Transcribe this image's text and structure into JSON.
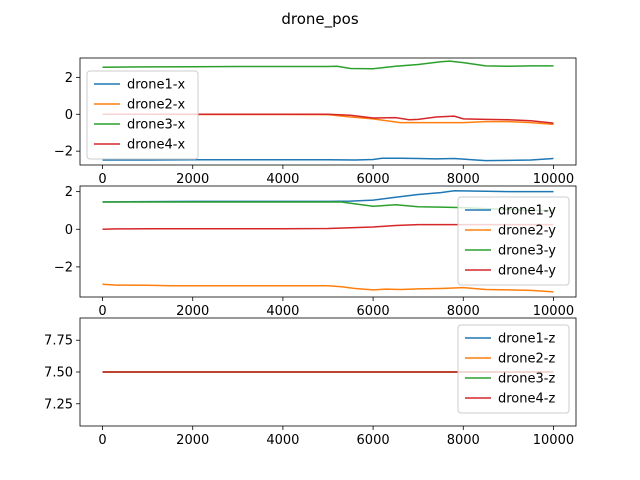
{
  "figure": {
    "title": "drone_pos"
  },
  "chart_data": [
    {
      "type": "line",
      "title": "",
      "xlabel": "",
      "ylabel": "",
      "xlim": [
        -500,
        10500
      ],
      "ylim": [
        -2.75,
        3.05
      ],
      "xticks": [
        0,
        2000,
        4000,
        6000,
        8000,
        10000
      ],
      "yticks": [
        -2,
        0,
        2
      ],
      "legend_position": "left",
      "grid": false,
      "series": [
        {
          "name": "drone1-x",
          "color": "#1f77b4",
          "x": [
            0,
            1000,
            2000,
            3000,
            4000,
            5000,
            5600,
            6000,
            6200,
            6600,
            7000,
            7400,
            7800,
            8200,
            8500,
            9000,
            9500,
            10000
          ],
          "y": [
            -2.48,
            -2.48,
            -2.47,
            -2.47,
            -2.47,
            -2.47,
            -2.48,
            -2.45,
            -2.38,
            -2.38,
            -2.4,
            -2.42,
            -2.4,
            -2.47,
            -2.51,
            -2.5,
            -2.48,
            -2.4
          ]
        },
        {
          "name": "drone2-x",
          "color": "#ff7f0e",
          "x": [
            0,
            1000,
            2000,
            3000,
            4000,
            5000,
            5500,
            6000,
            6300,
            6600,
            7000,
            7500,
            8000,
            8500,
            9000,
            9500,
            10000
          ],
          "y": [
            0.0,
            0.0,
            -0.01,
            -0.01,
            -0.01,
            -0.02,
            -0.15,
            -0.25,
            -0.35,
            -0.45,
            -0.45,
            -0.45,
            -0.45,
            -0.4,
            -0.4,
            -0.45,
            -0.55
          ]
        },
        {
          "name": "drone3-x",
          "color": "#2ca02c",
          "x": [
            0,
            1000,
            2000,
            3000,
            4000,
            5000,
            5200,
            5500,
            6000,
            6500,
            7000,
            7500,
            7700,
            8000,
            8500,
            9000,
            9500,
            10000
          ],
          "y": [
            2.55,
            2.57,
            2.58,
            2.59,
            2.59,
            2.59,
            2.6,
            2.48,
            2.47,
            2.6,
            2.7,
            2.85,
            2.88,
            2.8,
            2.62,
            2.6,
            2.62,
            2.62
          ]
        },
        {
          "name": "drone4-x",
          "color": "#d62728",
          "x": [
            0,
            1000,
            2000,
            3000,
            4000,
            5000,
            5500,
            6000,
            6500,
            6800,
            7000,
            7400,
            7800,
            8000,
            8500,
            9000,
            9500,
            10000
          ],
          "y": [
            0.0,
            0.0,
            0.0,
            0.0,
            0.0,
            0.0,
            -0.05,
            -0.2,
            -0.18,
            -0.3,
            -0.28,
            -0.15,
            -0.1,
            -0.25,
            -0.28,
            -0.3,
            -0.35,
            -0.48
          ]
        }
      ]
    },
    {
      "type": "line",
      "title": "",
      "xlabel": "",
      "ylabel": "",
      "xlim": [
        -500,
        10500
      ],
      "ylim": [
        -3.6,
        2.3
      ],
      "xticks": [
        0,
        2000,
        4000,
        6000,
        8000,
        10000
      ],
      "yticks": [
        -2,
        0,
        2
      ],
      "legend_position": "right",
      "grid": false,
      "series": [
        {
          "name": "drone1-y",
          "color": "#1f77b4",
          "x": [
            0,
            1000,
            2000,
            3000,
            4000,
            5000,
            5500,
            6000,
            6500,
            7000,
            7500,
            7800,
            8500,
            9000,
            10000
          ],
          "y": [
            1.45,
            1.47,
            1.48,
            1.48,
            1.48,
            1.48,
            1.5,
            1.55,
            1.7,
            1.85,
            1.95,
            2.05,
            2.02,
            2.0,
            2.0
          ]
        },
        {
          "name": "drone2-y",
          "color": "#ff7f0e",
          "x": [
            0,
            300,
            1000,
            1500,
            2000,
            3000,
            4000,
            5000,
            5300,
            5600,
            6000,
            6300,
            6600,
            7000,
            7500,
            8000,
            8500,
            9000,
            9500,
            10000
          ],
          "y": [
            -2.92,
            -2.97,
            -2.98,
            -3.0,
            -3.0,
            -3.0,
            -3.0,
            -3.0,
            -3.05,
            -3.15,
            -3.22,
            -3.18,
            -3.2,
            -3.17,
            -3.15,
            -3.1,
            -3.2,
            -3.22,
            -3.25,
            -3.33
          ]
        },
        {
          "name": "drone3-y",
          "color": "#2ca02c",
          "x": [
            0,
            1000,
            2000,
            3000,
            4000,
            5000,
            5300,
            5600,
            6000,
            6500,
            7000,
            7500,
            8000,
            8500,
            9000,
            9500,
            10000
          ],
          "y": [
            1.45,
            1.45,
            1.45,
            1.45,
            1.45,
            1.45,
            1.45,
            1.35,
            1.22,
            1.3,
            1.2,
            1.18,
            1.15,
            1.1,
            1.05,
            1.0,
            1.0
          ]
        },
        {
          "name": "drone4-y",
          "color": "#d62728",
          "x": [
            0,
            300,
            1000,
            2000,
            3000,
            4000,
            5000,
            5500,
            6000,
            6500,
            7000,
            7500,
            8000,
            8500,
            9000,
            9500,
            10000
          ],
          "y": [
            0.0,
            0.02,
            0.03,
            0.03,
            0.03,
            0.03,
            0.04,
            0.08,
            0.12,
            0.2,
            0.25,
            0.25,
            0.25,
            0.25,
            0.25,
            0.25,
            0.25
          ]
        }
      ]
    },
    {
      "type": "line",
      "title": "",
      "xlabel": "",
      "ylabel": "",
      "xlim": [
        -500,
        10500
      ],
      "ylim": [
        7.075,
        7.925
      ],
      "xticks": [
        0,
        2000,
        4000,
        6000,
        8000,
        10000
      ],
      "yticks": [
        7.25,
        7.5,
        7.75
      ],
      "ytick_labels": [
        "7.25",
        "7.50",
        "7.75"
      ],
      "legend_position": "right",
      "grid": false,
      "series": [
        {
          "name": "drone1-z",
          "color": "#1f77b4",
          "x": [
            0,
            10000
          ],
          "y": [
            7.5,
            7.5
          ]
        },
        {
          "name": "drone2-z",
          "color": "#ff7f0e",
          "x": [
            0,
            10000
          ],
          "y": [
            7.5,
            7.5
          ]
        },
        {
          "name": "drone3-z",
          "color": "#2ca02c",
          "x": [
            0,
            10000
          ],
          "y": [
            7.5,
            7.5
          ]
        },
        {
          "name": "drone4-z",
          "color": "#d62728",
          "x": [
            0,
            10000
          ],
          "y": [
            7.5,
            7.5
          ]
        }
      ]
    }
  ]
}
